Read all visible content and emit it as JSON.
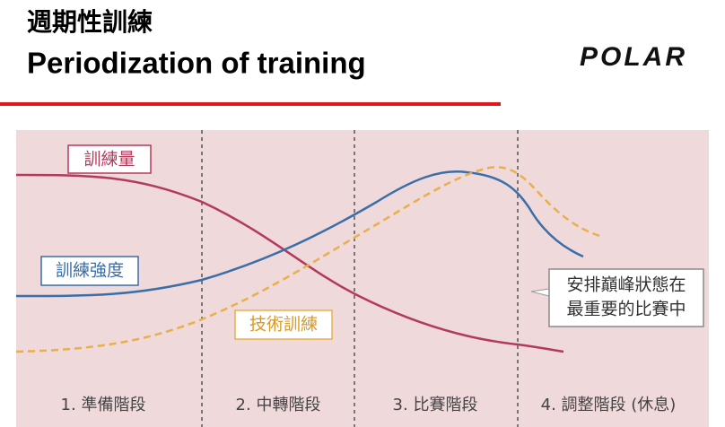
{
  "header": {
    "title_zh": "週期性訓練",
    "title_en": "Periodization of training",
    "logo": "POLAR"
  },
  "diagram": {
    "curves": [
      {
        "label": "訓練量"
      },
      {
        "label": "訓練強度"
      },
      {
        "label": "技術訓練"
      }
    ],
    "callout": [
      "安排巔峰狀態在",
      "最重要的比賽中"
    ],
    "phases": [
      "1. 準備階段",
      "2. 中轉階段",
      "3. 比賽階段",
      "4. 調整階段 (休息)"
    ]
  }
}
